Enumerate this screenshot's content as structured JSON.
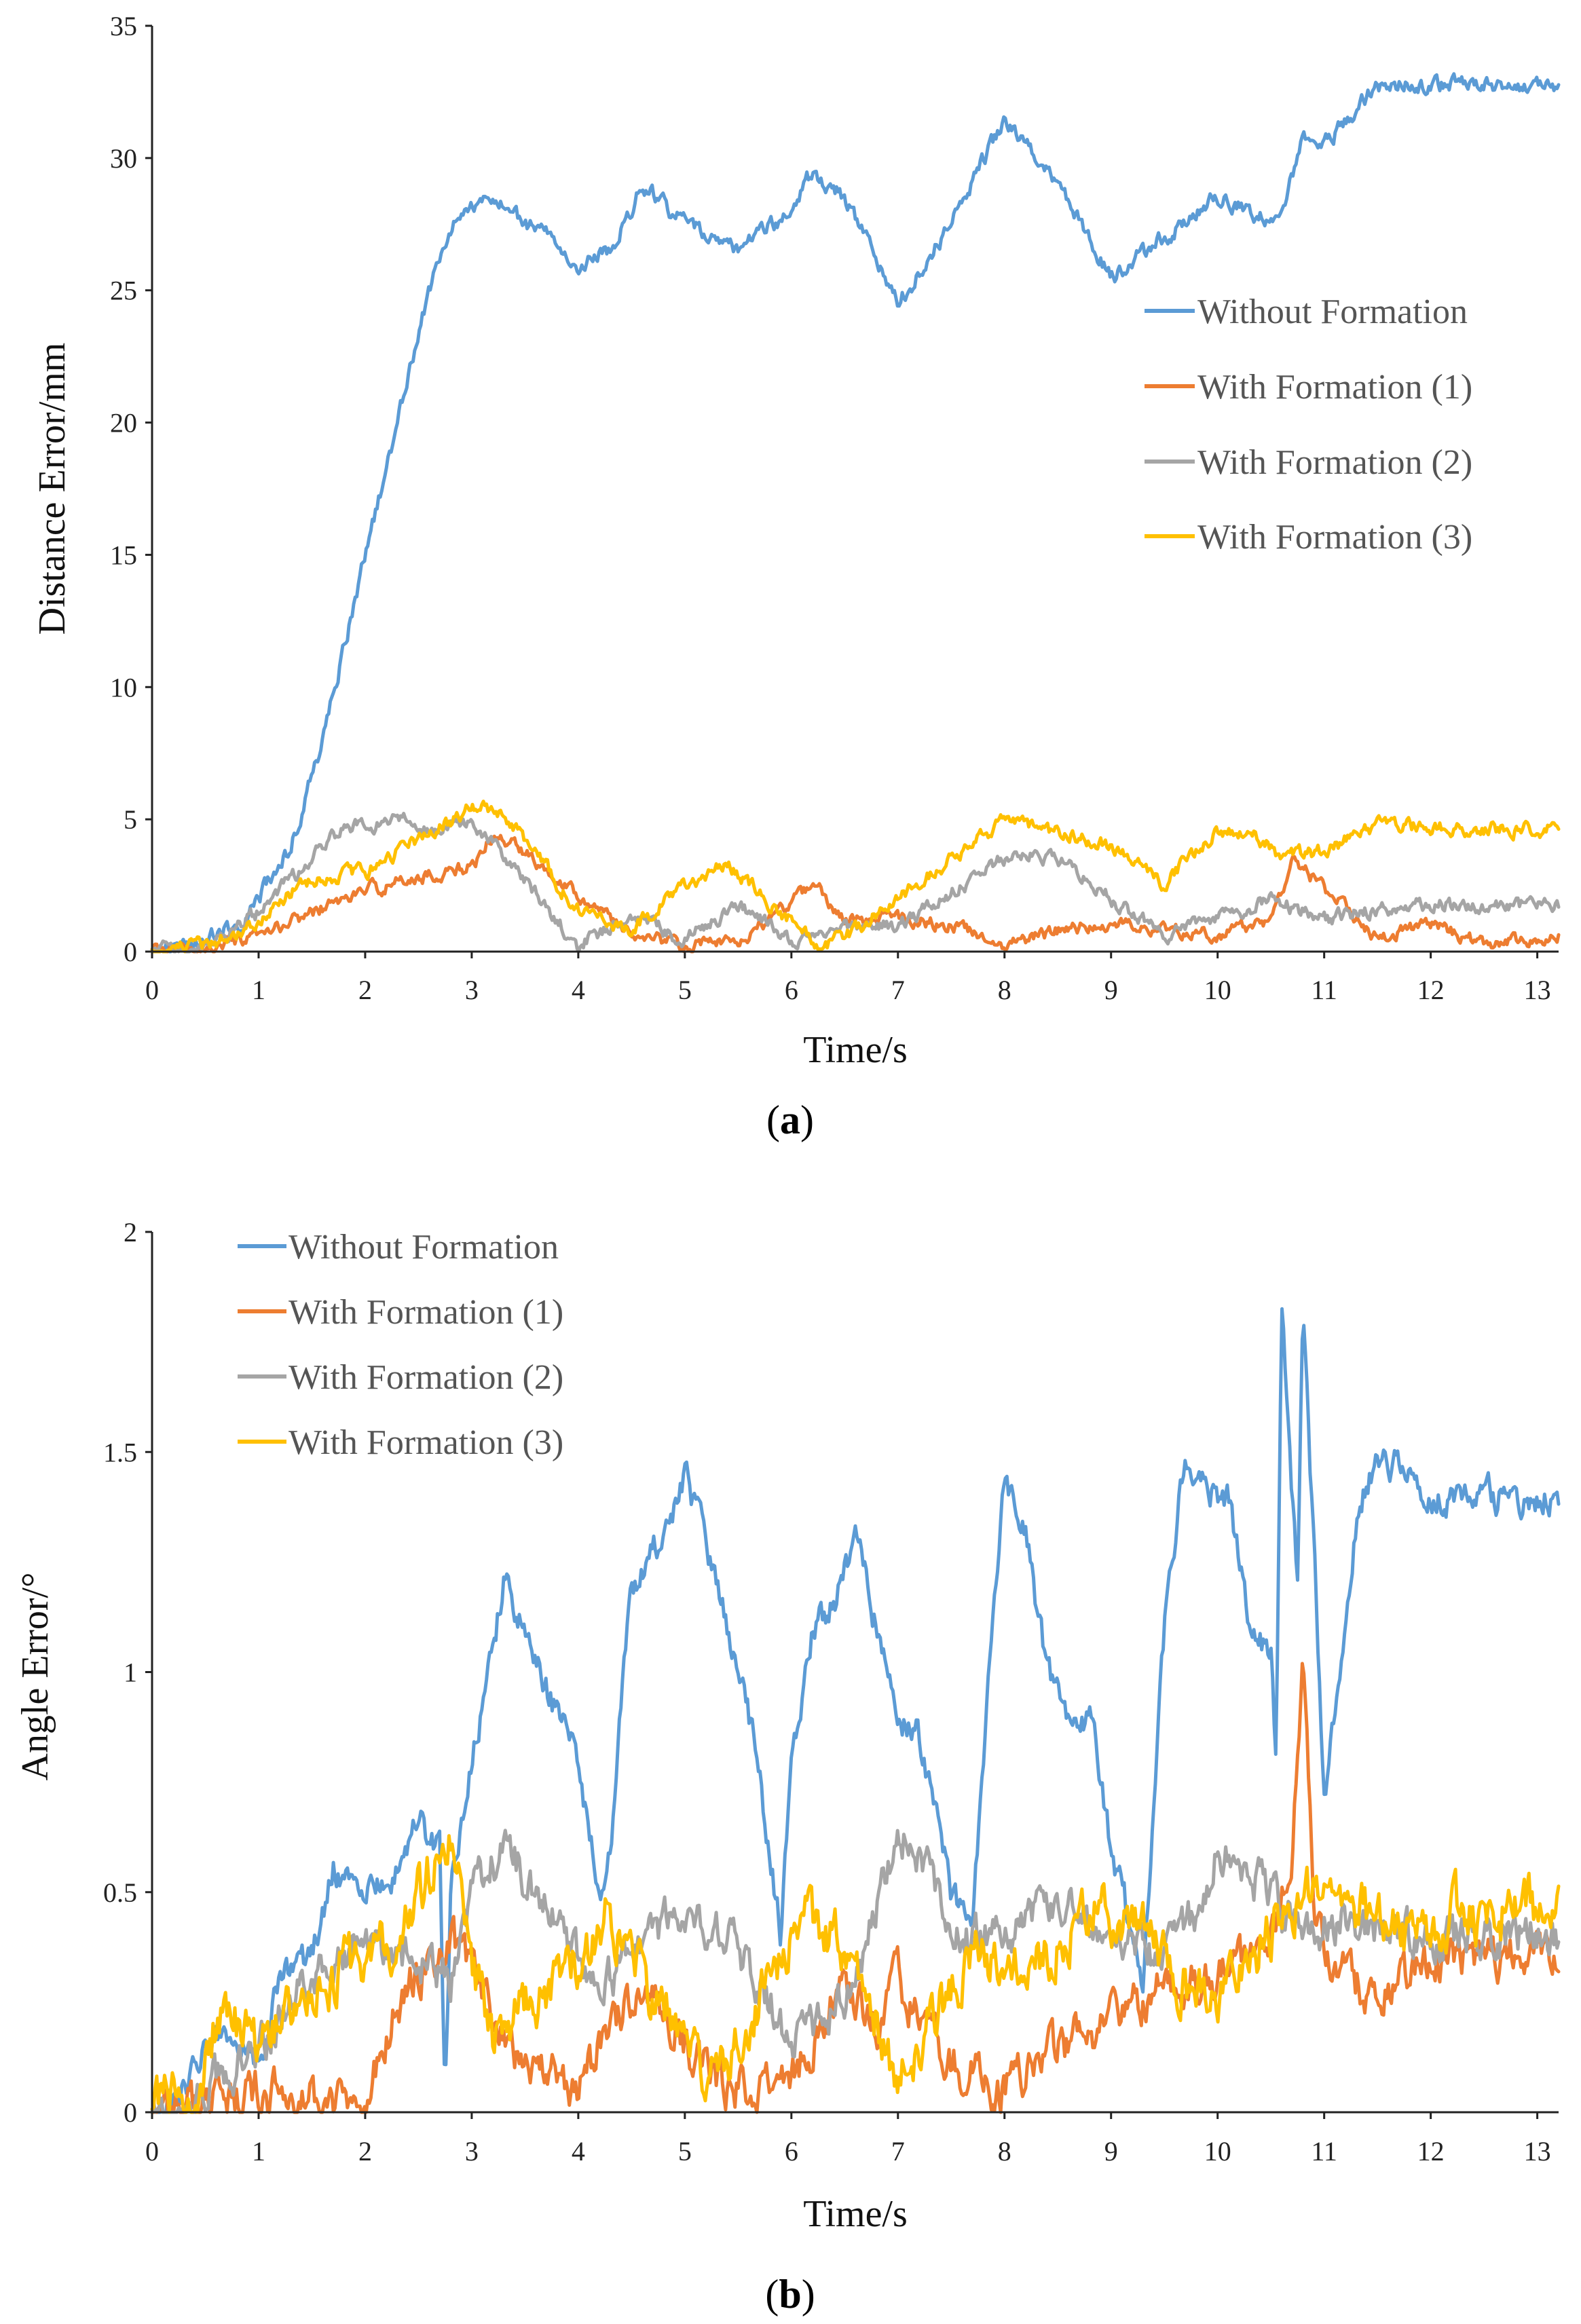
{
  "chart_data": [
    {
      "panel": "a",
      "type": "line",
      "xlabel": "Time/s",
      "ylabel": "Distance Error/mm",
      "xlim": [
        0,
        13.2
      ],
      "ylim": [
        0,
        35
      ],
      "xticks": [
        "0",
        "1",
        "2",
        "3",
        "4",
        "5",
        "6",
        "7",
        "8",
        "9",
        "10",
        "11",
        "12",
        "13"
      ],
      "yticks": [
        "0",
        "5",
        "10",
        "15",
        "20",
        "25",
        "30",
        "35"
      ],
      "legend_position": "middle-right",
      "series": [
        {
          "name": "Without Formation",
          "color": "#5B9BD5",
          "noise": 0.25,
          "x": [
            0,
            0.4,
            0.8,
            1.0,
            1.3,
            1.6,
            2.0,
            2.3,
            2.6,
            2.9,
            3.2,
            3.5,
            3.8,
            4.0,
            4.3,
            4.6,
            5.0,
            5.5,
            6.0,
            6.2,
            6.5,
            7.0,
            7.5,
            8.0,
            8.5,
            9.0,
            9.5,
            10.0,
            10.3,
            10.6,
            10.8,
            11.0,
            11.5,
            12.0,
            13.2
          ],
          "y": [
            0,
            0.3,
            1.0,
            2.0,
            4.0,
            8.0,
            15.0,
            20.0,
            25.0,
            28.0,
            28.4,
            27.5,
            27.0,
            26.0,
            26.5,
            29.0,
            27.5,
            26.5,
            28.0,
            29.5,
            28.5,
            24.5,
            27.5,
            31.5,
            29.0,
            25.5,
            27.0,
            28.5,
            28.0,
            27.5,
            31.0,
            30.5,
            32.7,
            32.8,
            32.7
          ]
        },
        {
          "name": "With Formation (1)",
          "color": "#ED7D31",
          "noise": 0.2,
          "x": [
            0,
            0.5,
            1.0,
            1.5,
            2.0,
            2.5,
            3.0,
            3.2,
            3.5,
            4.0,
            4.5,
            5.0,
            5.5,
            6.0,
            6.2,
            6.5,
            7.0,
            7.5,
            8.0,
            8.5,
            9.0,
            9.5,
            10.0,
            10.5,
            10.7,
            11.0,
            11.5,
            12.0,
            12.5,
            13.0,
            13.2
          ],
          "y": [
            0,
            0.1,
            0.5,
            1.5,
            2.3,
            2.8,
            3.2,
            4.4,
            3.8,
            2.2,
            0.7,
            0.2,
            0.4,
            1.8,
            2.6,
            1.2,
            1.3,
            1.0,
            0.3,
            0.8,
            1.0,
            0.9,
            0.6,
            1.2,
            3.5,
            2.4,
            0.5,
            1.0,
            0.3,
            0.5,
            0.6
          ]
        },
        {
          "name": "With Formation (2)",
          "color": "#A5A5A5",
          "noise": 0.22,
          "x": [
            0,
            0.5,
            1.0,
            1.5,
            1.8,
            2.0,
            2.3,
            2.6,
            3.0,
            3.3,
            3.6,
            4.0,
            4.3,
            4.6,
            5.0,
            5.5,
            6.0,
            6.5,
            7.0,
            7.5,
            8.0,
            8.3,
            8.6,
            9.0,
            9.5,
            10.0,
            10.5,
            11.0,
            11.5,
            12.0,
            13.2
          ],
          "y": [
            0,
            0.2,
            1.5,
            3.5,
            4.8,
            4.7,
            5.1,
            4.6,
            5.0,
            3.5,
            2.2,
            0.2,
            1.0,
            1.3,
            0.4,
            1.8,
            0.4,
            1.0,
            1.0,
            2.2,
            3.5,
            3.7,
            3.2,
            2.0,
            0.6,
            1.2,
            2.0,
            1.2,
            1.6,
            1.8,
            1.7
          ]
        },
        {
          "name": "With Formation (3)",
          "color": "#FFC000",
          "noise": 0.22,
          "x": [
            0,
            0.5,
            1.0,
            1.5,
            2.0,
            2.3,
            2.6,
            3.0,
            3.3,
            3.6,
            4.0,
            4.5,
            5.0,
            5.4,
            5.8,
            6.3,
            6.6,
            7.0,
            7.5,
            8.0,
            8.5,
            9.0,
            9.5,
            9.7,
            10.0,
            10.3,
            10.6,
            11.0,
            11.5,
            12.0,
            13.2
          ],
          "y": [
            0,
            0.2,
            1.2,
            2.8,
            3.0,
            3.8,
            4.5,
            5.4,
            5.3,
            3.8,
            1.5,
            0.8,
            2.5,
            3.4,
            1.8,
            0.2,
            0.8,
            2.0,
            3.5,
            4.9,
            4.5,
            4.0,
            2.5,
            3.5,
            4.5,
            4.6,
            3.6,
            3.8,
            4.8,
            4.7,
            4.6
          ]
        }
      ]
    },
    {
      "panel": "b",
      "type": "line",
      "xlabel": "Time/s",
      "ylabel": "Angle Error/°",
      "xlim": [
        0,
        13.2
      ],
      "ylim": [
        0,
        2
      ],
      "xticks": [
        "0",
        "1",
        "2",
        "3",
        "4",
        "5",
        "6",
        "7",
        "8",
        "9",
        "10",
        "11",
        "12",
        "13"
      ],
      "yticks": [
        "0",
        "0.5",
        "1",
        "1.5",
        "2"
      ],
      "legend_position": "top-left",
      "series": [
        {
          "name": "Without Formation",
          "color": "#5B9BD5",
          "noise": 0.03,
          "x": [
            0,
            0.3,
            0.5,
            0.7,
            1.0,
            1.2,
            1.5,
            1.7,
            2.0,
            2.3,
            2.5,
            2.7,
            2.75,
            2.8,
            3.0,
            3.3,
            3.5,
            3.8,
            4.0,
            4.2,
            4.3,
            4.5,
            4.8,
            5.0,
            5.3,
            5.6,
            5.8,
            5.9,
            6.0,
            6.2,
            6.4,
            6.6,
            6.8,
            7.0,
            7.2,
            7.5,
            7.7,
            7.8,
            8.0,
            8.2,
            8.4,
            8.6,
            8.8,
            9.0,
            9.2,
            9.3,
            9.5,
            9.7,
            9.9,
            10.1,
            10.3,
            10.5,
            10.55,
            10.6,
            10.7,
            10.75,
            10.8,
            10.9,
            11.0,
            11.1,
            11.3,
            11.5,
            11.8,
            12.0,
            13.2
          ],
          "y": [
            0,
            0.05,
            0.15,
            0.2,
            0.1,
            0.3,
            0.35,
            0.55,
            0.5,
            0.55,
            0.65,
            0.6,
            0.0,
            0.5,
            0.8,
            1.2,
            1.1,
            0.9,
            0.8,
            0.5,
            0.6,
            1.2,
            1.3,
            1.45,
            1.2,
            0.9,
            0.6,
            0.4,
            0.8,
            1.1,
            1.15,
            1.3,
            1.1,
            0.9,
            0.85,
            0.5,
            0.4,
            0.8,
            1.45,
            1.3,
            1.0,
            0.9,
            0.9,
            0.6,
            0.4,
            0.3,
            1.1,
            1.5,
            1.4,
            1.4,
            1.1,
            1.05,
            0.8,
            1.85,
            1.4,
            1.2,
            1.8,
            1.3,
            0.7,
            0.9,
            1.35,
            1.5,
            1.45,
            1.4,
            1.4
          ]
        },
        {
          "name": "With Formation (1)",
          "color": "#ED7D31",
          "noise": 0.04,
          "x": [
            0,
            0.5,
            1.0,
            1.5,
            2.0,
            2.3,
            2.6,
            2.8,
            3.0,
            3.3,
            3.6,
            4.0,
            4.3,
            4.6,
            5.0,
            5.4,
            5.8,
            6.2,
            6.5,
            6.8,
            7.0,
            7.3,
            7.6,
            8.0,
            8.5,
            9.0,
            9.5,
            10.0,
            10.5,
            10.7,
            10.8,
            10.9,
            11.0,
            11.5,
            12.0,
            12.5,
            13.2
          ],
          "y": [
            0,
            0.02,
            0.05,
            0.03,
            0.05,
            0.25,
            0.35,
            0.4,
            0.3,
            0.15,
            0.1,
            0.05,
            0.2,
            0.3,
            0.15,
            0.05,
            0.05,
            0.15,
            0.3,
            0.2,
            0.3,
            0.15,
            0.1,
            0.05,
            0.15,
            0.2,
            0.3,
            0.3,
            0.4,
            0.6,
            1.0,
            0.5,
            0.35,
            0.25,
            0.35,
            0.35,
            0.35
          ]
        },
        {
          "name": "With Formation (2)",
          "color": "#A5A5A5",
          "noise": 0.04,
          "x": [
            0,
            0.5,
            1.0,
            1.5,
            2.0,
            2.5,
            2.8,
            3.0,
            3.3,
            3.6,
            4.0,
            4.3,
            4.6,
            5.0,
            5.4,
            5.8,
            6.0,
            6.3,
            6.6,
            7.0,
            7.3,
            7.6,
            8.0,
            8.4,
            8.8,
            9.0,
            9.4,
            9.8,
            10.0,
            10.3,
            10.6,
            10.9,
            11.2,
            11.6,
            12.0,
            12.5,
            13.2
          ],
          "y": [
            0,
            0.05,
            0.15,
            0.3,
            0.4,
            0.35,
            0.3,
            0.5,
            0.6,
            0.5,
            0.35,
            0.3,
            0.4,
            0.45,
            0.4,
            0.25,
            0.15,
            0.2,
            0.3,
            0.65,
            0.55,
            0.4,
            0.4,
            0.5,
            0.45,
            0.4,
            0.35,
            0.45,
            0.6,
            0.55,
            0.45,
            0.4,
            0.45,
            0.4,
            0.4,
            0.4,
            0.4
          ]
        },
        {
          "name": "With Formation (3)",
          "color": "#FFC000",
          "noise": 0.05,
          "x": [
            0,
            0.4,
            0.6,
            0.8,
            1.0,
            1.3,
            1.6,
            2.0,
            2.3,
            2.6,
            2.8,
            3.0,
            3.2,
            3.5,
            3.8,
            4.0,
            4.3,
            4.6,
            5.0,
            5.2,
            5.5,
            5.8,
            6.1,
            6.4,
            6.8,
            7.0,
            7.3,
            7.7,
            8.0,
            8.4,
            8.8,
            9.2,
            9.6,
            10.0,
            10.3,
            10.6,
            11.0,
            11.4,
            11.8,
            12.2,
            12.6,
            13.2
          ],
          "y": [
            0.02,
            0.02,
            0.2,
            0.2,
            0.12,
            0.25,
            0.3,
            0.35,
            0.4,
            0.55,
            0.6,
            0.35,
            0.15,
            0.25,
            0.3,
            0.35,
            0.45,
            0.3,
            0.2,
            0.05,
            0.15,
            0.3,
            0.45,
            0.4,
            0.2,
            0.05,
            0.2,
            0.35,
            0.35,
            0.35,
            0.45,
            0.45,
            0.3,
            0.25,
            0.35,
            0.45,
            0.55,
            0.45,
            0.4,
            0.45,
            0.45,
            0.48
          ]
        }
      ]
    }
  ],
  "panel_labels": [
    "(a)",
    "(b)"
  ]
}
